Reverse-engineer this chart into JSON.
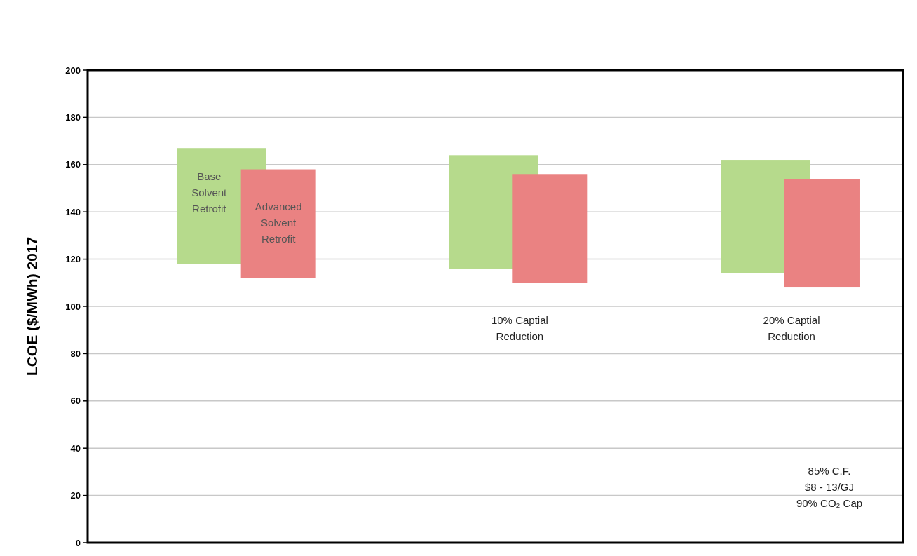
{
  "chart_data": {
    "type": "bar",
    "ylabel": "LCOE ($/MWh) 2017",
    "categories": [
      null,
      "10% Captial Reduction",
      "20% Captial Reduction"
    ],
    "series": [
      {
        "name": "Base Solvent Retrofit",
        "color": "#b6da8c",
        "base": [
          118,
          116,
          114
        ],
        "values": [
          49,
          48,
          48
        ]
      },
      {
        "name": "Advanced Solvent Retrofit",
        "color": "#ea8282",
        "base": [
          112,
          110,
          108
        ],
        "values": [
          46,
          46,
          46
        ]
      }
    ],
    "ylim": [
      0,
      200
    ],
    "yticks": [
      0,
      20,
      40,
      60,
      80,
      100,
      120,
      140,
      160,
      180,
      200
    ],
    "grid": "y",
    "annotations": [
      "85% C.F.",
      "$8 - 13/GJ",
      "90% CO₂ Cap"
    ]
  }
}
